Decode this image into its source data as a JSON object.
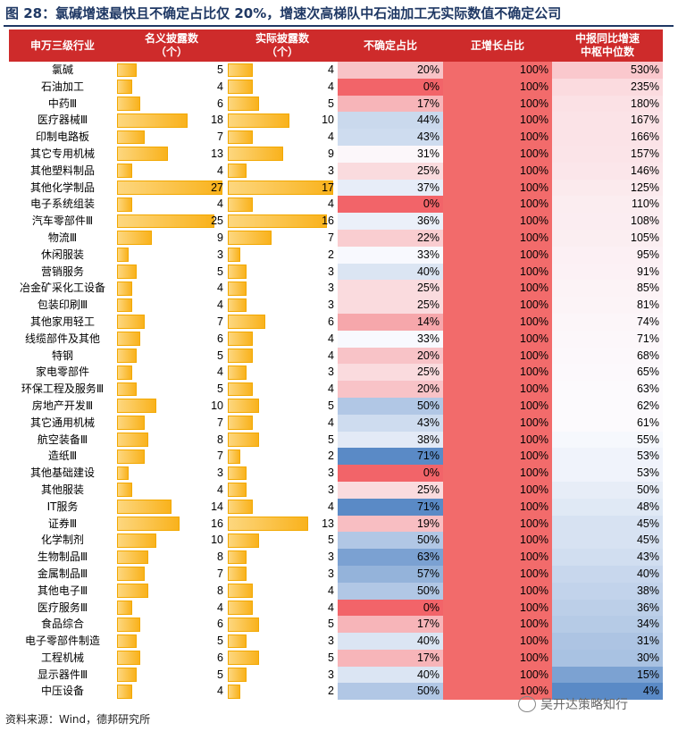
{
  "title": "图 28：氯碱增速最快且不确定占比仅 20%，增速次高梯队中石油加工无实际数值不确定公司",
  "source": "资料来源：Wind，德邦研究所",
  "watermark": "吴开达策略知行",
  "headers": [
    "申万三级行业",
    "名义披露数\n（个）",
    "实际披露数\n（个）",
    "不确定占比",
    "正增长占比",
    "中报同比增速\n中枢中位数"
  ],
  "colors": {
    "header": "#ce2b2b",
    "pos_col": "#f26b6b",
    "title": "#1f3864"
  },
  "chart_data": {
    "type": "table",
    "columns": [
      "申万三级行业",
      "名义披露数（个）",
      "实际披露数（个）",
      "不确定占比",
      "正增长占比",
      "中报同比增速中枢中位数"
    ],
    "rows": [
      {
        "industry": "氯碱",
        "nominal": 5,
        "actual": 4,
        "uncertain": "20%",
        "positive": "100%",
        "growth": "530%"
      },
      {
        "industry": "石油加工",
        "nominal": 4,
        "actual": 4,
        "uncertain": "0%",
        "positive": "100%",
        "growth": "235%"
      },
      {
        "industry": "中药Ⅲ",
        "nominal": 6,
        "actual": 5,
        "uncertain": "17%",
        "positive": "100%",
        "growth": "180%"
      },
      {
        "industry": "医疗器械Ⅲ",
        "nominal": 18,
        "actual": 10,
        "uncertain": "44%",
        "positive": "100%",
        "growth": "167%"
      },
      {
        "industry": "印制电路板",
        "nominal": 7,
        "actual": 4,
        "uncertain": "43%",
        "positive": "100%",
        "growth": "166%"
      },
      {
        "industry": "其它专用机械",
        "nominal": 13,
        "actual": 9,
        "uncertain": "31%",
        "positive": "100%",
        "growth": "157%"
      },
      {
        "industry": "其他塑料制品",
        "nominal": 4,
        "actual": 3,
        "uncertain": "25%",
        "positive": "100%",
        "growth": "146%"
      },
      {
        "industry": "其他化学制品",
        "nominal": 27,
        "actual": 17,
        "uncertain": "37%",
        "positive": "100%",
        "growth": "125%"
      },
      {
        "industry": "电子系统组装",
        "nominal": 4,
        "actual": 4,
        "uncertain": "0%",
        "positive": "100%",
        "growth": "110%"
      },
      {
        "industry": "汽车零部件Ⅲ",
        "nominal": 25,
        "actual": 16,
        "uncertain": "36%",
        "positive": "100%",
        "growth": "108%"
      },
      {
        "industry": "物流Ⅲ",
        "nominal": 9,
        "actual": 7,
        "uncertain": "22%",
        "positive": "100%",
        "growth": "105%"
      },
      {
        "industry": "休闲服装",
        "nominal": 3,
        "actual": 2,
        "uncertain": "33%",
        "positive": "100%",
        "growth": "95%"
      },
      {
        "industry": "营销服务",
        "nominal": 5,
        "actual": 3,
        "uncertain": "40%",
        "positive": "100%",
        "growth": "91%"
      },
      {
        "industry": "冶金矿采化工设备",
        "nominal": 4,
        "actual": 3,
        "uncertain": "25%",
        "positive": "100%",
        "growth": "85%"
      },
      {
        "industry": "包装印刷Ⅲ",
        "nominal": 4,
        "actual": 3,
        "uncertain": "25%",
        "positive": "100%",
        "growth": "81%"
      },
      {
        "industry": "其他家用轻工",
        "nominal": 7,
        "actual": 6,
        "uncertain": "14%",
        "positive": "100%",
        "growth": "74%"
      },
      {
        "industry": "线缆部件及其他",
        "nominal": 6,
        "actual": 4,
        "uncertain": "33%",
        "positive": "100%",
        "growth": "71%"
      },
      {
        "industry": "特钢",
        "nominal": 5,
        "actual": 4,
        "uncertain": "20%",
        "positive": "100%",
        "growth": "68%"
      },
      {
        "industry": "家电零部件",
        "nominal": 4,
        "actual": 3,
        "uncertain": "25%",
        "positive": "100%",
        "growth": "65%"
      },
      {
        "industry": "环保工程及服务Ⅲ",
        "nominal": 5,
        "actual": 4,
        "uncertain": "20%",
        "positive": "100%",
        "growth": "63%"
      },
      {
        "industry": "房地产开发Ⅲ",
        "nominal": 10,
        "actual": 5,
        "uncertain": "50%",
        "positive": "100%",
        "growth": "62%"
      },
      {
        "industry": "其它通用机械",
        "nominal": 7,
        "actual": 4,
        "uncertain": "43%",
        "positive": "100%",
        "growth": "61%"
      },
      {
        "industry": "航空装备Ⅲ",
        "nominal": 8,
        "actual": 5,
        "uncertain": "38%",
        "positive": "100%",
        "growth": "55%"
      },
      {
        "industry": "造纸Ⅲ",
        "nominal": 7,
        "actual": 2,
        "uncertain": "71%",
        "positive": "100%",
        "growth": "53%"
      },
      {
        "industry": "其他基础建设",
        "nominal": 3,
        "actual": 3,
        "uncertain": "0%",
        "positive": "100%",
        "growth": "53%"
      },
      {
        "industry": "其他服装",
        "nominal": 4,
        "actual": 3,
        "uncertain": "25%",
        "positive": "100%",
        "growth": "50%"
      },
      {
        "industry": "IT服务",
        "nominal": 14,
        "actual": 4,
        "uncertain": "71%",
        "positive": "100%",
        "growth": "48%"
      },
      {
        "industry": "证券Ⅲ",
        "nominal": 16,
        "actual": 13,
        "uncertain": "19%",
        "positive": "100%",
        "growth": "45%"
      },
      {
        "industry": "化学制剂",
        "nominal": 10,
        "actual": 5,
        "uncertain": "50%",
        "positive": "100%",
        "growth": "45%"
      },
      {
        "industry": "生物制品Ⅲ",
        "nominal": 8,
        "actual": 3,
        "uncertain": "63%",
        "positive": "100%",
        "growth": "43%"
      },
      {
        "industry": "金属制品Ⅲ",
        "nominal": 7,
        "actual": 3,
        "uncertain": "57%",
        "positive": "100%",
        "growth": "40%"
      },
      {
        "industry": "其他电子Ⅲ",
        "nominal": 8,
        "actual": 4,
        "uncertain": "50%",
        "positive": "100%",
        "growth": "38%"
      },
      {
        "industry": "医疗服务Ⅲ",
        "nominal": 4,
        "actual": 4,
        "uncertain": "0%",
        "positive": "100%",
        "growth": "36%"
      },
      {
        "industry": "食品综合",
        "nominal": 6,
        "actual": 5,
        "uncertain": "17%",
        "positive": "100%",
        "growth": "34%"
      },
      {
        "industry": "电子零部件制造",
        "nominal": 5,
        "actual": 3,
        "uncertain": "40%",
        "positive": "100%",
        "growth": "31%"
      },
      {
        "industry": "工程机械",
        "nominal": 6,
        "actual": 5,
        "uncertain": "17%",
        "positive": "100%",
        "growth": "30%"
      },
      {
        "industry": "显示器件Ⅲ",
        "nominal": 5,
        "actual": 3,
        "uncertain": "40%",
        "positive": "100%",
        "growth": "15%"
      },
      {
        "industry": "中压设备",
        "nominal": 4,
        "actual": 2,
        "uncertain": "50%",
        "positive": "100%",
        "growth": "4%"
      }
    ]
  }
}
